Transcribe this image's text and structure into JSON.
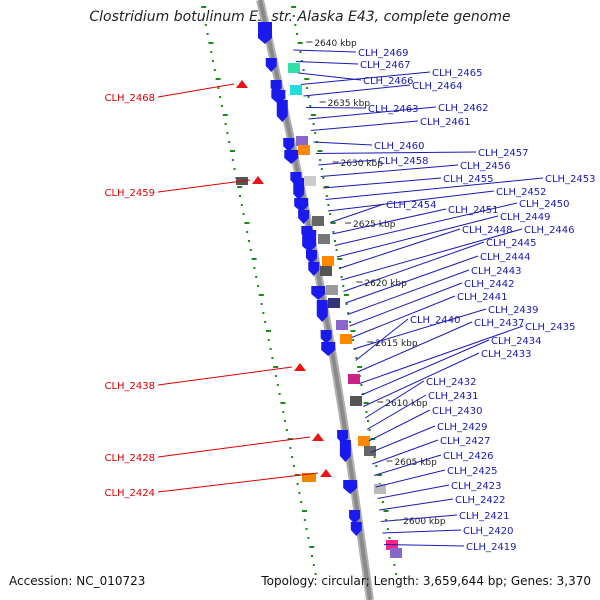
{
  "title": "Clostridium botulinum E3 str. Alaska E43, complete genome",
  "accession_label": "Accession: NC_010723",
  "summary_label": "Topology: circular; Length: 3,659,644 bp; Genes: 3,370",
  "colors": {
    "backbone": "#8a8a8a",
    "tick_dots": "#1a8a1a",
    "forward_gene": "#1a1aee",
    "reverse_gene_label": "#dd0000",
    "gene_label": "#1a1ab4",
    "scale_label": "#222222"
  },
  "scale_ticks": [
    "2640 kbp",
    "2635 kbp",
    "2630 kbp",
    "2625 kbp",
    "2620 kbp",
    "2615 kbp",
    "2610 kbp",
    "2605 kbp",
    "2600 kbp"
  ],
  "reverse_genes": [
    "CLH_2468",
    "CLH_2459",
    "CLH_2438",
    "CLH_2428",
    "CLH_2424"
  ],
  "forward_genes": [
    "CLH_2469",
    "CLH_2467",
    "CLH_2466",
    "CLH_2465",
    "CLH_2464",
    "CLH_2463",
    "CLH_2462",
    "CLH_2461",
    "CLH_2460",
    "CLH_2457",
    "CLH_2458",
    "CLH_2456",
    "CLH_2455",
    "CLH_2453",
    "CLH_2452",
    "CLH_2454",
    "CLH_2451",
    "CLH_2450",
    "CLH_2449",
    "CLH_2448",
    "CLH_2446",
    "CLH_2445",
    "CLH_2444",
    "CLH_2443",
    "CLH_2442",
    "CLH_2441",
    "CLH_2439",
    "CLH_2440",
    "CLH_2437",
    "CLH_2435",
    "CLH_2434",
    "CLH_2433",
    "CLH_2432",
    "CLH_2431",
    "CLH_2430",
    "CLH_2429",
    "CLH_2427",
    "CLH_2426",
    "CLH_2425",
    "CLH_2423",
    "CLH_2422",
    "CLH_2421",
    "CLH_2420",
    "CLH_2419"
  ]
}
